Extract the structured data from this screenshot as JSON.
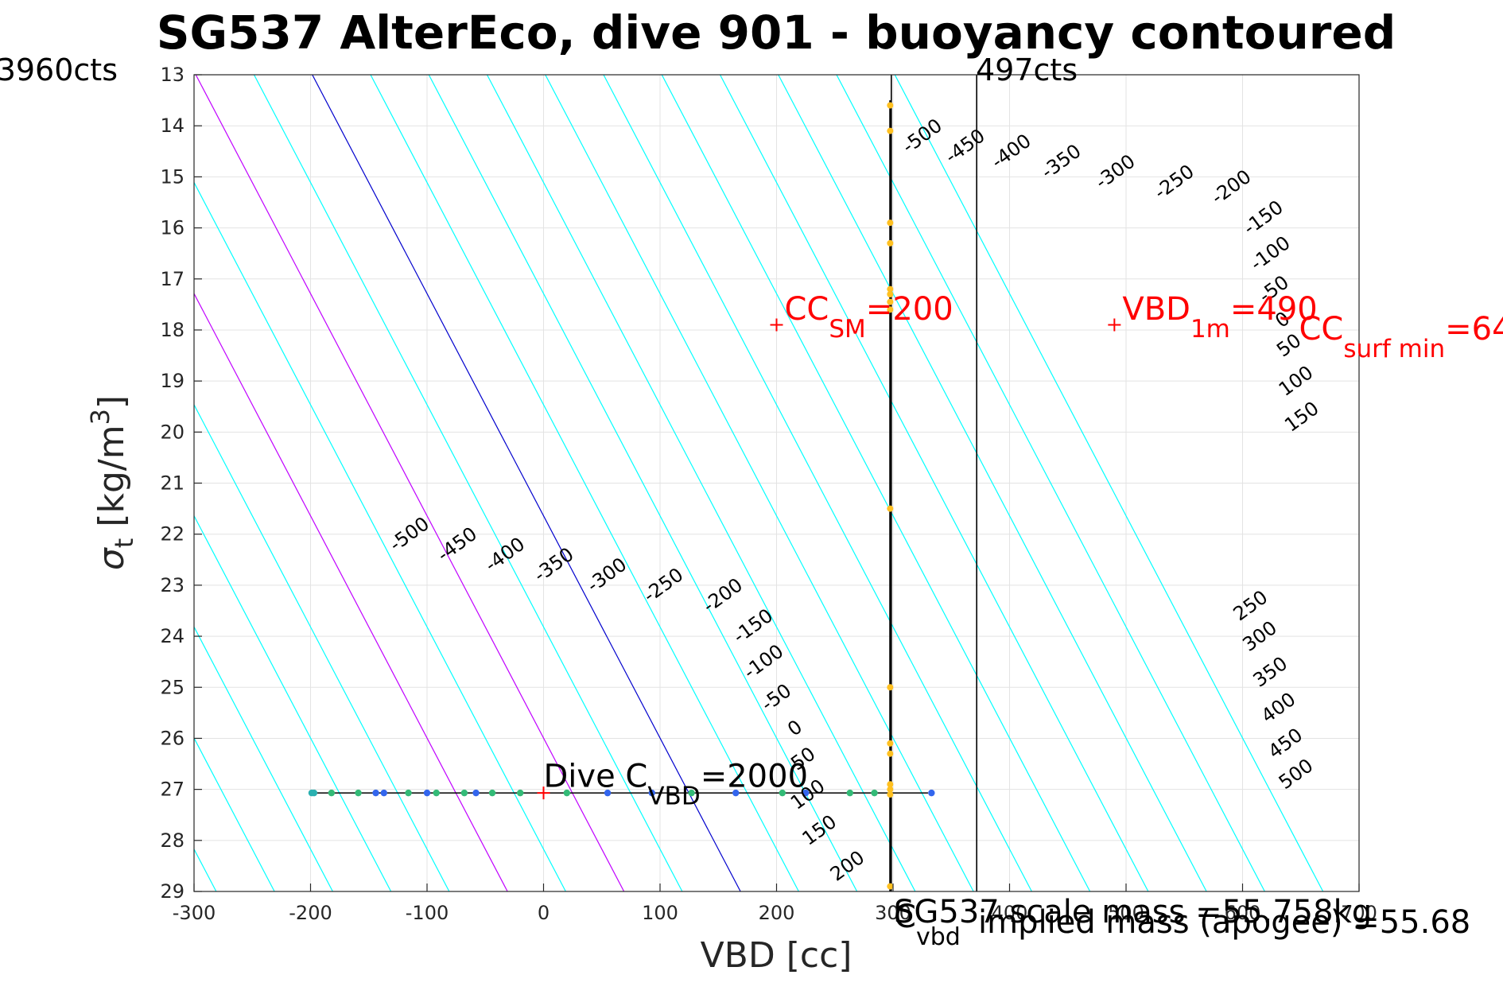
{
  "chart_data": {
    "type": "line",
    "title": "SG537 AlterEco, dive 901 - buoyancy contoured",
    "xlabel": "VBD [cc]",
    "ylabel_main": "σ",
    "ylabel_sub": "t",
    "ylabel_units": "[kg/m",
    "ylabel_sup": "3",
    "ylabel_close": "]",
    "xlim": [
      -300,
      700
    ],
    "ylim": [
      13,
      29
    ],
    "y_reversed": true,
    "grid": true,
    "x_ticks": [
      -300,
      -200,
      -100,
      0,
      100,
      200,
      300,
      400,
      500,
      600,
      700
    ],
    "y_ticks": [
      13,
      14,
      15,
      16,
      17,
      18,
      19,
      20,
      21,
      22,
      23,
      24,
      25,
      26,
      27,
      28,
      29
    ],
    "contour_slope_cc_per_sigma": 22.97,
    "contour_zero_at_sigma27": 123.1,
    "contours_negative": [
      -500,
      -450,
      -400,
      -350,
      -300,
      -250,
      -200,
      -150,
      -100,
      -50
    ],
    "contours_positive": [
      50,
      100,
      150,
      200,
      250,
      300,
      350,
      400,
      450,
      500
    ],
    "contour_colors": {
      "normal": "#00ffff",
      "zero": "#0000cd",
      "highlight": "#c000ff"
    },
    "highlight_levels": [
      100,
      200
    ],
    "upper_labels": [
      {
        "text": "-500",
        "x": 328.2,
        "y": 14.3
      },
      {
        "text": "-450",
        "x": 365,
        "y": 14.5
      },
      {
        "text": "-400",
        "x": 404.6,
        "y": 14.6
      },
      {
        "text": "-350",
        "x": 447.5,
        "y": 14.8
      },
      {
        "text": "-300",
        "x": 493.9,
        "y": 15.0
      },
      {
        "text": "-250",
        "x": 544.5,
        "y": 15.2
      },
      {
        "text": "-200",
        "x": 593.5,
        "y": 15.3
      },
      {
        "text": "-150",
        "x": 621,
        "y": 15.9
      },
      {
        "text": "-100",
        "x": 627,
        "y": 16.6
      },
      {
        "text": "-50",
        "x": 630,
        "y": 17.3
      },
      {
        "text": "0",
        "x": 637.5,
        "y": 17.9
      },
      {
        "text": "50",
        "x": 643,
        "y": 18.4
      },
      {
        "text": "100",
        "x": 649,
        "y": 19.1
      },
      {
        "text": "150",
        "x": 654,
        "y": 19.8
      }
    ],
    "lower_labels": [
      {
        "text": "-500",
        "x": -112,
        "y": 22.1
      },
      {
        "text": "-450",
        "x": -71,
        "y": 22.3
      },
      {
        "text": "-400",
        "x": -30,
        "y": 22.5
      },
      {
        "text": "-350",
        "x": 12,
        "y": 22.7
      },
      {
        "text": "-300",
        "x": 57.5,
        "y": 22.9
      },
      {
        "text": "-250",
        "x": 106,
        "y": 23.1
      },
      {
        "text": "-200",
        "x": 157,
        "y": 23.3
      },
      {
        "text": "-150",
        "x": 183,
        "y": 23.9
      },
      {
        "text": "-100",
        "x": 192,
        "y": 24.6
      },
      {
        "text": "-50",
        "x": 203,
        "y": 25.3
      },
      {
        "text": "0",
        "x": 219,
        "y": 25.9
      },
      {
        "text": "50",
        "x": 226,
        "y": 26.5
      },
      {
        "text": "100",
        "x": 230,
        "y": 27.2
      },
      {
        "text": "150",
        "x": 240,
        "y": 27.9
      },
      {
        "text": "200",
        "x": 264,
        "y": 28.6
      },
      {
        "text": "250",
        "x": 610,
        "y": 23.5
      },
      {
        "text": "300",
        "x": 618,
        "y": 24.1
      },
      {
        "text": "350",
        "x": 627,
        "y": 24.8
      },
      {
        "text": "400",
        "x": 634,
        "y": 25.5
      },
      {
        "text": "450",
        "x": 640,
        "y": 26.2
      },
      {
        "text": "500",
        "x": 649,
        "y": 26.8
      }
    ],
    "vlines": [
      {
        "x": 298.5,
        "label": "",
        "color": "#000000"
      },
      {
        "x": 371.8,
        "label": "",
        "color": "#000000"
      }
    ],
    "dive_track": {
      "sigma": 27.07,
      "x_start": -200,
      "x_end": 330,
      "points": [
        {
          "x": -199,
          "color": "#2ab0b0"
        },
        {
          "x": -197,
          "color": "#2ab0b0"
        },
        {
          "x": -182,
          "color": "#33bb77"
        },
        {
          "x": -159,
          "color": "#33bb77"
        },
        {
          "x": -144,
          "color": "#3366ee"
        },
        {
          "x": -137,
          "color": "#3366ee"
        },
        {
          "x": -116,
          "color": "#33bb77"
        },
        {
          "x": -100,
          "color": "#3366ee"
        },
        {
          "x": -92,
          "color": "#33bb77"
        },
        {
          "x": -68,
          "color": "#33bb77"
        },
        {
          "x": -58,
          "color": "#3366ee"
        },
        {
          "x": -44,
          "color": "#33bb77"
        },
        {
          "x": -20,
          "color": "#33bb77"
        },
        {
          "x": 20,
          "color": "#33bb77"
        },
        {
          "x": 55,
          "color": "#3366ee"
        },
        {
          "x": 93,
          "color": "#3366ee"
        },
        {
          "x": 127,
          "color": "#33bb77"
        },
        {
          "x": 165,
          "color": "#3366ee"
        },
        {
          "x": 205,
          "color": "#33bb77"
        },
        {
          "x": 225,
          "color": "#3366ee"
        },
        {
          "x": 263,
          "color": "#33bb77"
        },
        {
          "x": 284,
          "color": "#33bb77"
        },
        {
          "x": 333,
          "color": "#3366ee"
        }
      ]
    },
    "vertical_track": {
      "x": 297.5,
      "points": [
        13.6,
        14.1,
        15.9,
        16.3,
        17.2,
        17.3,
        17.45,
        17.6,
        21.5,
        25.0,
        26.1,
        26.3,
        26.9,
        27.0,
        27.1,
        28.9
      ],
      "color": "#ffc020"
    },
    "markers": [
      {
        "x": 0,
        "y": 27.07,
        "color": "#ff0000"
      },
      {
        "x": 200,
        "y": 17.9,
        "color": "#ff0000"
      },
      {
        "x": 490,
        "y": 17.9,
        "color": "#ff0000"
      }
    ],
    "annotations": {
      "cc_sm": {
        "main": "CC",
        "sub": "SM",
        "tail": "=200",
        "x": 200,
        "y": 17.8
      },
      "vbd_1m": {
        "main": "VBD",
        "sub": "1m",
        "tail": "=490",
        "x": 490,
        "y": 17.8
      },
      "cc_surf": {
        "main": "CC",
        "sub": "surf min",
        "tail": "=64",
        "x": 643,
        "y": 18.0
      },
      "dive_c": {
        "main": "Dive C",
        "sub": "VBD",
        "tail": "=2000",
        "x": 0,
        "y": 26.95
      },
      "top_left": "3960cts",
      "top_right": "497cts",
      "c_vbd_main": "C",
      "c_vbd_sub": "vbd",
      "sg_scale": "SG537 scale mass =55.758kg",
      "implied_mass": "implied mass (apogee) =55.68"
    }
  }
}
